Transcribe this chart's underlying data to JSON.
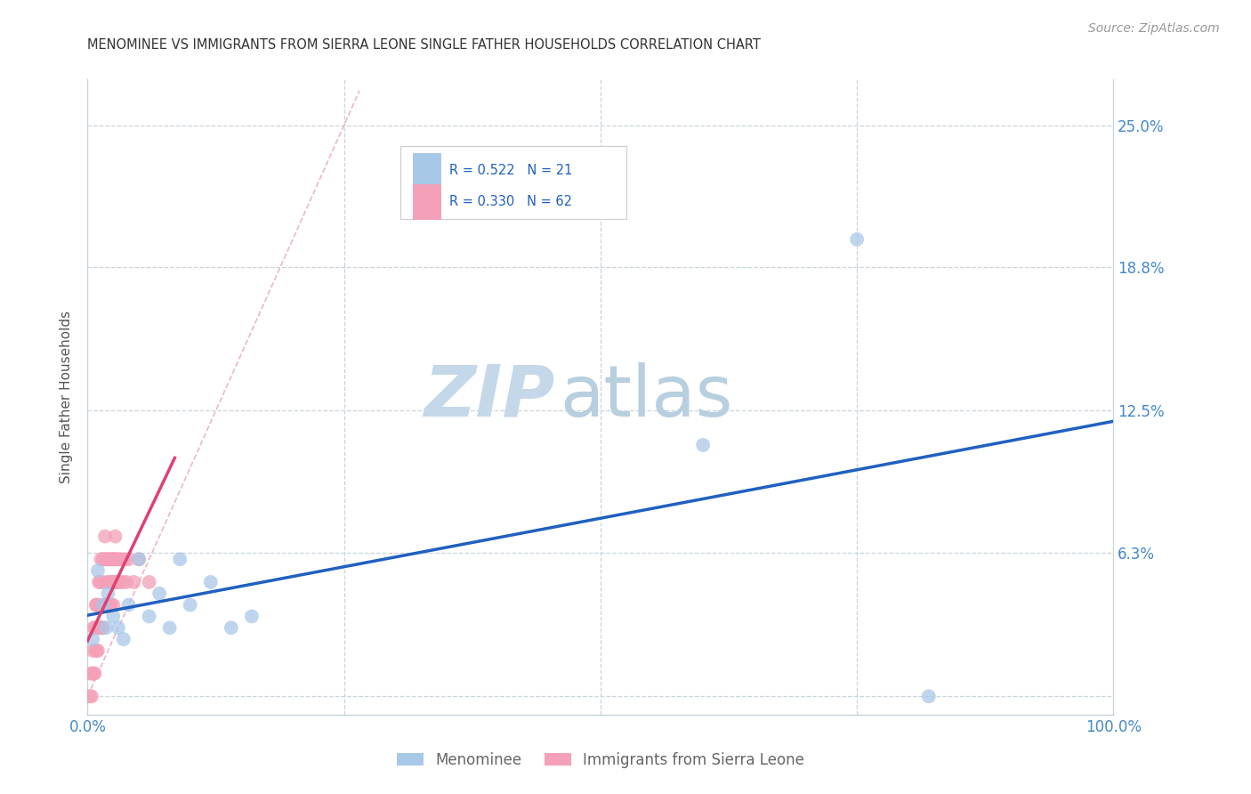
{
  "title": "MENOMINEE VS IMMIGRANTS FROM SIERRA LEONE SINGLE FATHER HOUSEHOLDS CORRELATION CHART",
  "source": "Source: ZipAtlas.com",
  "ylabel": "Single Father Households",
  "xlim": [
    0.0,
    1.0
  ],
  "ylim": [
    -0.008,
    0.27
  ],
  "yticks": [
    0.0,
    0.063,
    0.125,
    0.188,
    0.25
  ],
  "yticklabels": [
    "",
    "6.3%",
    "12.5%",
    "18.8%",
    "25.0%"
  ],
  "xticks": [
    0.0,
    0.25,
    0.5,
    0.75,
    1.0
  ],
  "xticklabels": [
    "0.0%",
    "",
    "",
    "",
    "100.0%"
  ],
  "legend_labels": [
    "Menominee",
    "Immigrants from Sierra Leone"
  ],
  "menominee_color": "#a8c8e8",
  "sierra_leone_color": "#f4a0b8",
  "menominee_line_color": "#2060c0",
  "sierra_leone_line_color": "#e04070",
  "diagonal_color": "#e8b0c0",
  "R_menominee": "0.522",
  "N_menominee": "21",
  "R_sierra_leone": "0.330",
  "N_sierra_leone": "62",
  "menominee_x": [
    0.005,
    0.01,
    0.015,
    0.018,
    0.02,
    0.025,
    0.03,
    0.035,
    0.04,
    0.05,
    0.06,
    0.07,
    0.08,
    0.09,
    0.1,
    0.12,
    0.14,
    0.16,
    0.6,
    0.75,
    0.82
  ],
  "menominee_y": [
    0.025,
    0.055,
    0.04,
    0.03,
    0.045,
    0.035,
    0.03,
    0.025,
    0.04,
    0.06,
    0.035,
    0.045,
    0.03,
    0.06,
    0.04,
    0.05,
    0.03,
    0.035,
    0.11,
    0.2,
    0.0
  ],
  "sierra_leone_x": [
    0.002,
    0.003,
    0.004,
    0.005,
    0.005,
    0.006,
    0.006,
    0.007,
    0.007,
    0.008,
    0.008,
    0.009,
    0.009,
    0.01,
    0.01,
    0.011,
    0.011,
    0.012,
    0.012,
    0.013,
    0.013,
    0.014,
    0.014,
    0.015,
    0.015,
    0.016,
    0.016,
    0.017,
    0.017,
    0.018,
    0.018,
    0.019,
    0.019,
    0.02,
    0.02,
    0.021,
    0.021,
    0.022,
    0.022,
    0.023,
    0.023,
    0.024,
    0.024,
    0.025,
    0.025,
    0.026,
    0.026,
    0.027,
    0.027,
    0.028,
    0.028,
    0.029,
    0.03,
    0.031,
    0.032,
    0.034,
    0.036,
    0.038,
    0.04,
    0.045,
    0.05,
    0.06
  ],
  "sierra_leone_y": [
    0.0,
    0.01,
    0.0,
    0.01,
    0.02,
    0.01,
    0.03,
    0.01,
    0.03,
    0.02,
    0.04,
    0.02,
    0.04,
    0.02,
    0.04,
    0.03,
    0.05,
    0.03,
    0.05,
    0.03,
    0.06,
    0.03,
    0.05,
    0.03,
    0.06,
    0.04,
    0.06,
    0.04,
    0.07,
    0.04,
    0.06,
    0.04,
    0.05,
    0.04,
    0.06,
    0.04,
    0.06,
    0.04,
    0.05,
    0.04,
    0.06,
    0.05,
    0.06,
    0.04,
    0.06,
    0.05,
    0.06,
    0.05,
    0.07,
    0.05,
    0.06,
    0.05,
    0.06,
    0.05,
    0.06,
    0.05,
    0.06,
    0.05,
    0.06,
    0.05,
    0.06,
    0.05
  ],
  "watermark_zip": "ZIP",
  "watermark_atlas": "atlas",
  "watermark_color_zip": "#c5d8ea",
  "watermark_color_atlas": "#b8cfe0",
  "background_color": "#ffffff",
  "grid_color": "#c8d4dc",
  "axis_color": "#4488cc",
  "axis_label_color": "#555555"
}
